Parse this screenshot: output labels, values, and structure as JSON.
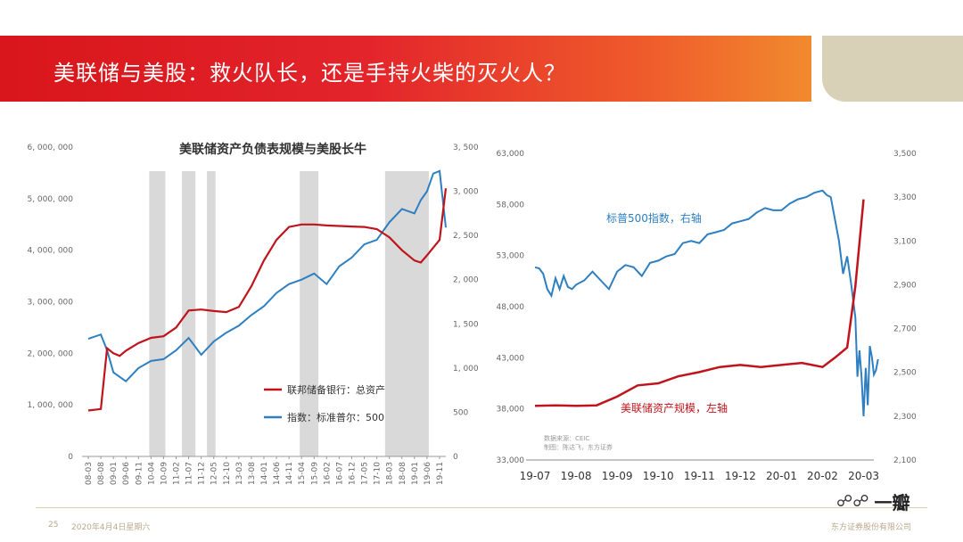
{
  "slide": {
    "title": "美联储与美股：救火队长，还是手持火柴的灭火人？",
    "page_number": "25",
    "date": "2020年4月4日星期六",
    "company": "东方证券股份有限公司",
    "watermark_text": "一瓣",
    "watermark_icon": "wechat-bubbles-icon"
  },
  "colors": {
    "banner_red": "#d8161b",
    "banner_orange": "#f18a2e",
    "series_red": "#c0141c",
    "series_blue": "#2e7fc1",
    "recession_gray": "#d9d9d9"
  },
  "chart_data": [
    {
      "type": "line",
      "title": "美联储资产负债表规模与美股长牛",
      "left_axis": {
        "ylim": [
          0,
          6000000
        ],
        "ticks": [
          "0",
          "1, 000, 000",
          "2, 000, 000",
          "3, 000, 000",
          "4, 000, 000",
          "5, 000, 000",
          "6, 000, 000"
        ]
      },
      "right_axis": {
        "ylim": [
          0,
          3500
        ],
        "ticks": [
          "0",
          "500",
          "1, 000",
          "1, 500",
          "2, 000",
          "2, 500",
          "3, 000",
          "3, 500"
        ]
      },
      "x_ticks": [
        "08-03",
        "08-08",
        "09-01",
        "09-06",
        "09-11",
        "10-04",
        "10-09",
        "11-02",
        "11-07",
        "11-12",
        "12-05",
        "12-10",
        "13-03",
        "13-08",
        "14-01",
        "14-06",
        "14-11",
        "15-04",
        "15-09",
        "16-02",
        "16-07",
        "16-12",
        "17-05",
        "17-10",
        "18-03",
        "18-08",
        "19-01",
        "19-06",
        "19-11"
      ],
      "shaded_periods": [
        [
          "10-04",
          "10-09"
        ],
        [
          "11-05",
          "11-09"
        ],
        [
          "12-03",
          "12-05"
        ],
        [
          "15-04",
          "15-10"
        ],
        [
          "18-02",
          "19-06"
        ]
      ],
      "legend": [
        "联邦储备银行：总资产",
        "指数：标准普尔：500"
      ],
      "legend_position": "bottom-right",
      "series": [
        {
          "name": "联邦储备银行：总资产",
          "axis": "left",
          "x": [
            0,
            1,
            1.5,
            2,
            2.5,
            3,
            4,
            5,
            6,
            7,
            8,
            9,
            10,
            11,
            12,
            13,
            14,
            15,
            16,
            17,
            18,
            19,
            20,
            21,
            22,
            23,
            24,
            25,
            26,
            26.5,
            27,
            28,
            28.5
          ],
          "values": [
            890000,
            920000,
            2100000,
            2000000,
            1950000,
            2050000,
            2200000,
            2300000,
            2330000,
            2500000,
            2830000,
            2850000,
            2820000,
            2800000,
            2900000,
            3300000,
            3800000,
            4200000,
            4450000,
            4500000,
            4500000,
            4480000,
            4470000,
            4460000,
            4450000,
            4410000,
            4250000,
            4000000,
            3800000,
            3760000,
            3900000,
            4200000,
            5200000
          ]
        },
        {
          "name": "指数：标准普尔：500",
          "axis": "right",
          "x": [
            0,
            1,
            1.5,
            2,
            3,
            4,
            5,
            6,
            7,
            8,
            9,
            10,
            11,
            12,
            13,
            14,
            15,
            16,
            17,
            18,
            19,
            20,
            21,
            22,
            23,
            24,
            25,
            26,
            26.5,
            27,
            27.5,
            28,
            28.5
          ],
          "values": [
            1330,
            1380,
            1200,
            950,
            850,
            1000,
            1080,
            1100,
            1200,
            1340,
            1150,
            1300,
            1400,
            1480,
            1600,
            1700,
            1850,
            1950,
            2000,
            2070,
            1950,
            2150,
            2250,
            2400,
            2450,
            2650,
            2800,
            2750,
            2900,
            3000,
            3200,
            3230,
            2590
          ]
        }
      ]
    },
    {
      "type": "line",
      "title": "",
      "left_axis": {
        "ylim": [
          33000,
          63000
        ],
        "ticks": [
          "33,000",
          "38,000",
          "43,000",
          "48,000",
          "53,000",
          "58,000",
          "63,000"
        ]
      },
      "right_axis": {
        "ylim": [
          2100,
          3500
        ],
        "ticks": [
          "2,100",
          "2,300",
          "2,500",
          "2,700",
          "2,900",
          "3,100",
          "3,300",
          "3,500"
        ]
      },
      "x_ticks": [
        "19-07",
        "19-08",
        "19-09",
        "19-10",
        "19-11",
        "19-12",
        "20-01",
        "20-02",
        "20-03"
      ],
      "annotations": [
        {
          "text": "标普500指数，右轴",
          "target": "series-1"
        },
        {
          "text": "美联储资产规模，左轴",
          "target": "series-0"
        }
      ],
      "source_note": [
        "数据来源：CEIC",
        "制图：陈达飞，东方证券"
      ],
      "series": [
        {
          "name": "美联储资产规模，左轴",
          "axis": "left",
          "x": [
            0,
            0.5,
            1,
            1.5,
            2,
            2.5,
            3,
            3.5,
            4,
            4.5,
            5,
            5.5,
            6,
            6.5,
            7,
            7.3,
            7.6,
            7.8,
            8
          ],
          "values": [
            38300,
            38350,
            38300,
            38350,
            39200,
            40300,
            40500,
            41200,
            41600,
            42100,
            42300,
            42100,
            42300,
            42500,
            42100,
            43000,
            44000,
            50000,
            58500
          ]
        },
        {
          "name": "标普500指数，右轴",
          "axis": "right",
          "x": [
            0,
            0.1,
            0.2,
            0.3,
            0.4,
            0.5,
            0.6,
            0.7,
            0.8,
            0.9,
            1.0,
            1.2,
            1.4,
            1.6,
            1.8,
            2.0,
            2.2,
            2.4,
            2.6,
            2.8,
            3.0,
            3.2,
            3.4,
            3.6,
            3.8,
            4.0,
            4.2,
            4.4,
            4.6,
            4.8,
            5.0,
            5.2,
            5.4,
            5.6,
            5.8,
            6.0,
            6.2,
            6.4,
            6.6,
            6.8,
            7.0,
            7.1,
            7.2,
            7.3,
            7.4,
            7.5,
            7.6,
            7.7,
            7.8,
            7.85,
            7.9,
            7.95,
            8.0,
            8.05,
            8.1,
            8.15,
            8.2,
            8.25,
            8.3,
            8.35
          ],
          "values": [
            2980,
            2975,
            2950,
            2880,
            2850,
            2930,
            2880,
            2940,
            2890,
            2880,
            2900,
            2920,
            2960,
            2920,
            2880,
            2960,
            2990,
            2980,
            2940,
            3000,
            3010,
            3030,
            3040,
            3090,
            3100,
            3090,
            3130,
            3140,
            3150,
            3180,
            3190,
            3200,
            3230,
            3250,
            3240,
            3240,
            3270,
            3290,
            3300,
            3320,
            3330,
            3310,
            3300,
            3200,
            3100,
            2950,
            3030,
            2900,
            2750,
            2480,
            2600,
            2480,
            2300,
            2520,
            2350,
            2620,
            2570,
            2490,
            2510,
            2560
          ]
        }
      ]
    }
  ]
}
